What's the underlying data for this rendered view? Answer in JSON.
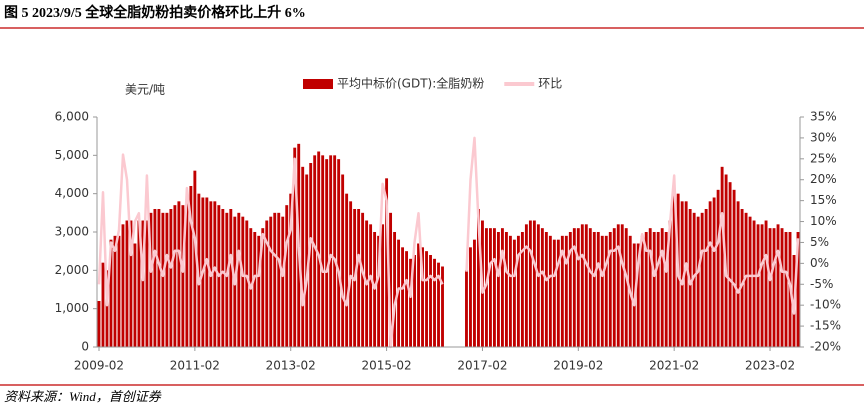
{
  "chart_data": {
    "type": "bar",
    "title": "图 5 2023/9/5 全球全脂奶粉拍卖价格环比上升 6%",
    "y_label": "美元/吨",
    "source": "资料来源：Wind，首创证券",
    "categories": [
      "2009-02",
      null,
      null,
      null,
      null,
      null,
      null,
      null,
      null,
      null,
      null,
      null,
      null,
      null,
      null,
      null,
      null,
      null,
      null,
      null,
      null,
      null,
      null,
      null,
      "2011-02",
      null,
      null,
      null,
      null,
      null,
      null,
      null,
      null,
      null,
      null,
      null,
      null,
      null,
      null,
      null,
      null,
      null,
      null,
      null,
      null,
      null,
      null,
      null,
      "2013-02",
      null,
      null,
      null,
      null,
      null,
      null,
      null,
      null,
      null,
      null,
      null,
      null,
      null,
      null,
      null,
      null,
      null,
      null,
      null,
      null,
      null,
      null,
      null,
      "2015-02",
      null,
      null,
      null,
      null,
      null,
      null,
      null,
      null,
      null,
      null,
      null,
      null,
      null,
      null,
      null,
      null,
      null,
      null,
      null,
      null,
      null,
      null,
      null,
      "2017-02",
      null,
      null,
      null,
      null,
      null,
      null,
      null,
      null,
      null,
      null,
      null,
      null,
      null,
      null,
      null,
      null,
      null,
      null,
      null,
      null,
      null,
      null,
      null,
      "2019-02",
      null,
      null,
      null,
      null,
      null,
      null,
      null,
      null,
      null,
      null,
      null,
      null,
      null,
      null,
      null,
      null,
      null,
      null,
      null,
      null,
      null,
      null,
      null,
      "2021-02",
      null,
      null,
      null,
      null,
      null,
      null,
      null,
      null,
      null,
      null,
      null,
      null,
      null,
      null,
      null,
      null,
      null,
      null,
      null,
      null,
      null,
      null,
      null,
      "2023-02",
      null,
      null,
      null,
      null,
      null,
      null,
      null
    ],
    "series": [
      {
        "name": "平均中标价(GDT):全脂奶粉",
        "color": "#c00000",
        "axis": "y",
        "values": [
          1200,
          2200,
          2000,
          2800,
          2900,
          2900,
          3200,
          3300,
          3300,
          2700,
          3300,
          3300,
          3300,
          3500,
          3600,
          3600,
          3500,
          3500,
          3600,
          3700,
          3800,
          3700,
          3800,
          4200,
          4600,
          4000,
          3900,
          3900,
          3800,
          3800,
          3700,
          3600,
          3500,
          3600,
          3400,
          3500,
          3400,
          3300,
          3100,
          3000,
          2900,
          3100,
          3300,
          3400,
          3500,
          3500,
          3400,
          3700,
          4000,
          5200,
          5300,
          4700,
          4500,
          4800,
          5000,
          5100,
          5000,
          4900,
          5000,
          5000,
          4900,
          4500,
          4000,
          3800,
          3600,
          3600,
          3500,
          3300,
          3200,
          3000,
          2900,
          3200,
          4400,
          3500,
          3000,
          2800,
          2600,
          2500,
          2300,
          2400,
          2700,
          2600,
          2500,
          2400,
          2300,
          2200,
          2100,
          null,
          null,
          null,
          null,
          null,
          2000,
          2600,
          2800,
          3600,
          3300,
          3100,
          3100,
          3100,
          3000,
          3100,
          3000,
          2900,
          2800,
          2900,
          3000,
          3200,
          3300,
          3300,
          3200,
          3100,
          3000,
          2900,
          2800,
          2800,
          2900,
          2900,
          3000,
          3100,
          3100,
          3200,
          3200,
          3100,
          3000,
          3000,
          2900,
          2900,
          3000,
          3100,
          3200,
          3200,
          3100,
          2900,
          2700,
          2700,
          2900,
          3000,
          3100,
          3000,
          3000,
          3100,
          3000,
          3300,
          4100,
          4000,
          3800,
          3800,
          3600,
          3500,
          3400,
          3500,
          3600,
          3800,
          3900,
          4100,
          4700,
          4500,
          4300,
          4100,
          3800,
          3600,
          3500,
          3400,
          3300,
          3200,
          3200,
          3300,
          3100,
          3100,
          3200,
          3100,
          3000,
          3000,
          2400,
          3000
        ]
      },
      {
        "name": "环比",
        "color": "#fbc9d0",
        "axis": "y2",
        "values": [
          -5,
          17,
          -10,
          5,
          3,
          8,
          26,
          20,
          2,
          10,
          12,
          -4,
          21,
          -2,
          3,
          0,
          -3,
          2,
          -1,
          3,
          3,
          -2,
          18,
          10,
          6,
          -5,
          -2,
          1,
          -3,
          -1,
          -3,
          -2,
          -3,
          2,
          -5,
          3,
          -3,
          -3,
          -6,
          -3,
          -3,
          7,
          5,
          3,
          2,
          1,
          -3,
          5,
          8,
          25,
          4,
          -10,
          -4,
          6,
          4,
          2,
          -2,
          -2,
          2,
          1,
          -2,
          -8,
          -10,
          -3,
          -4,
          2,
          -2,
          -5,
          -3,
          -6,
          -3,
          19,
          15,
          -20,
          -10,
          -6,
          -6,
          -4,
          -8,
          5,
          12,
          -4,
          -4,
          -3,
          -4,
          -3,
          -5,
          null,
          null,
          null,
          null,
          null,
          -2,
          20,
          30,
          10,
          -7,
          -5,
          0,
          1,
          -3,
          3,
          -2,
          -3,
          -3,
          2,
          3,
          4,
          3,
          0,
          -3,
          -2,
          -4,
          -3,
          -3,
          0,
          3,
          0,
          3,
          4,
          1,
          2,
          0,
          -2,
          -3,
          0,
          -3,
          0,
          3,
          3,
          4,
          0,
          -3,
          -7,
          -10,
          0,
          7,
          3,
          3,
          -3,
          0,
          3,
          -2,
          10,
          21,
          -3,
          -5,
          0,
          -5,
          -3,
          -2,
          3,
          3,
          5,
          3,
          5,
          12,
          -3,
          -4,
          -5,
          -7,
          -5,
          -3,
          -3,
          -3,
          -3,
          0,
          2,
          -4,
          0,
          3,
          -2,
          -2,
          -5,
          -12,
          6
        ]
      }
    ],
    "ylim": [
      0,
      6000
    ],
    "yticks": [
      0,
      {
        "value": 1000,
        "label": "1,000"
      },
      {
        "value": 2000,
        "label": "2,000"
      },
      {
        "value": 3000,
        "label": "3,000"
      },
      {
        "value": 4000,
        "label": "4,000"
      },
      {
        "value": 5000,
        "label": "5,000"
      },
      {
        "value": 6000,
        "label": "6,000"
      }
    ],
    "y2lim": [
      -20,
      35
    ],
    "y2ticks": [
      {
        "value": -20,
        "label": "-20%"
      },
      {
        "value": -15,
        "label": "-15%"
      },
      {
        "value": -10,
        "label": "-10%"
      },
      {
        "value": -5,
        "label": "-5%"
      },
      {
        "value": 0,
        "label": "0%"
      },
      {
        "value": 5,
        "label": "5%"
      },
      {
        "value": 10,
        "label": "10%"
      },
      {
        "value": 15,
        "label": "15%"
      },
      {
        "value": 20,
        "label": "20%"
      },
      {
        "value": 25,
        "label": "25%"
      },
      {
        "value": 30,
        "label": "30%"
      },
      {
        "value": 35,
        "label": "35%"
      }
    ]
  }
}
